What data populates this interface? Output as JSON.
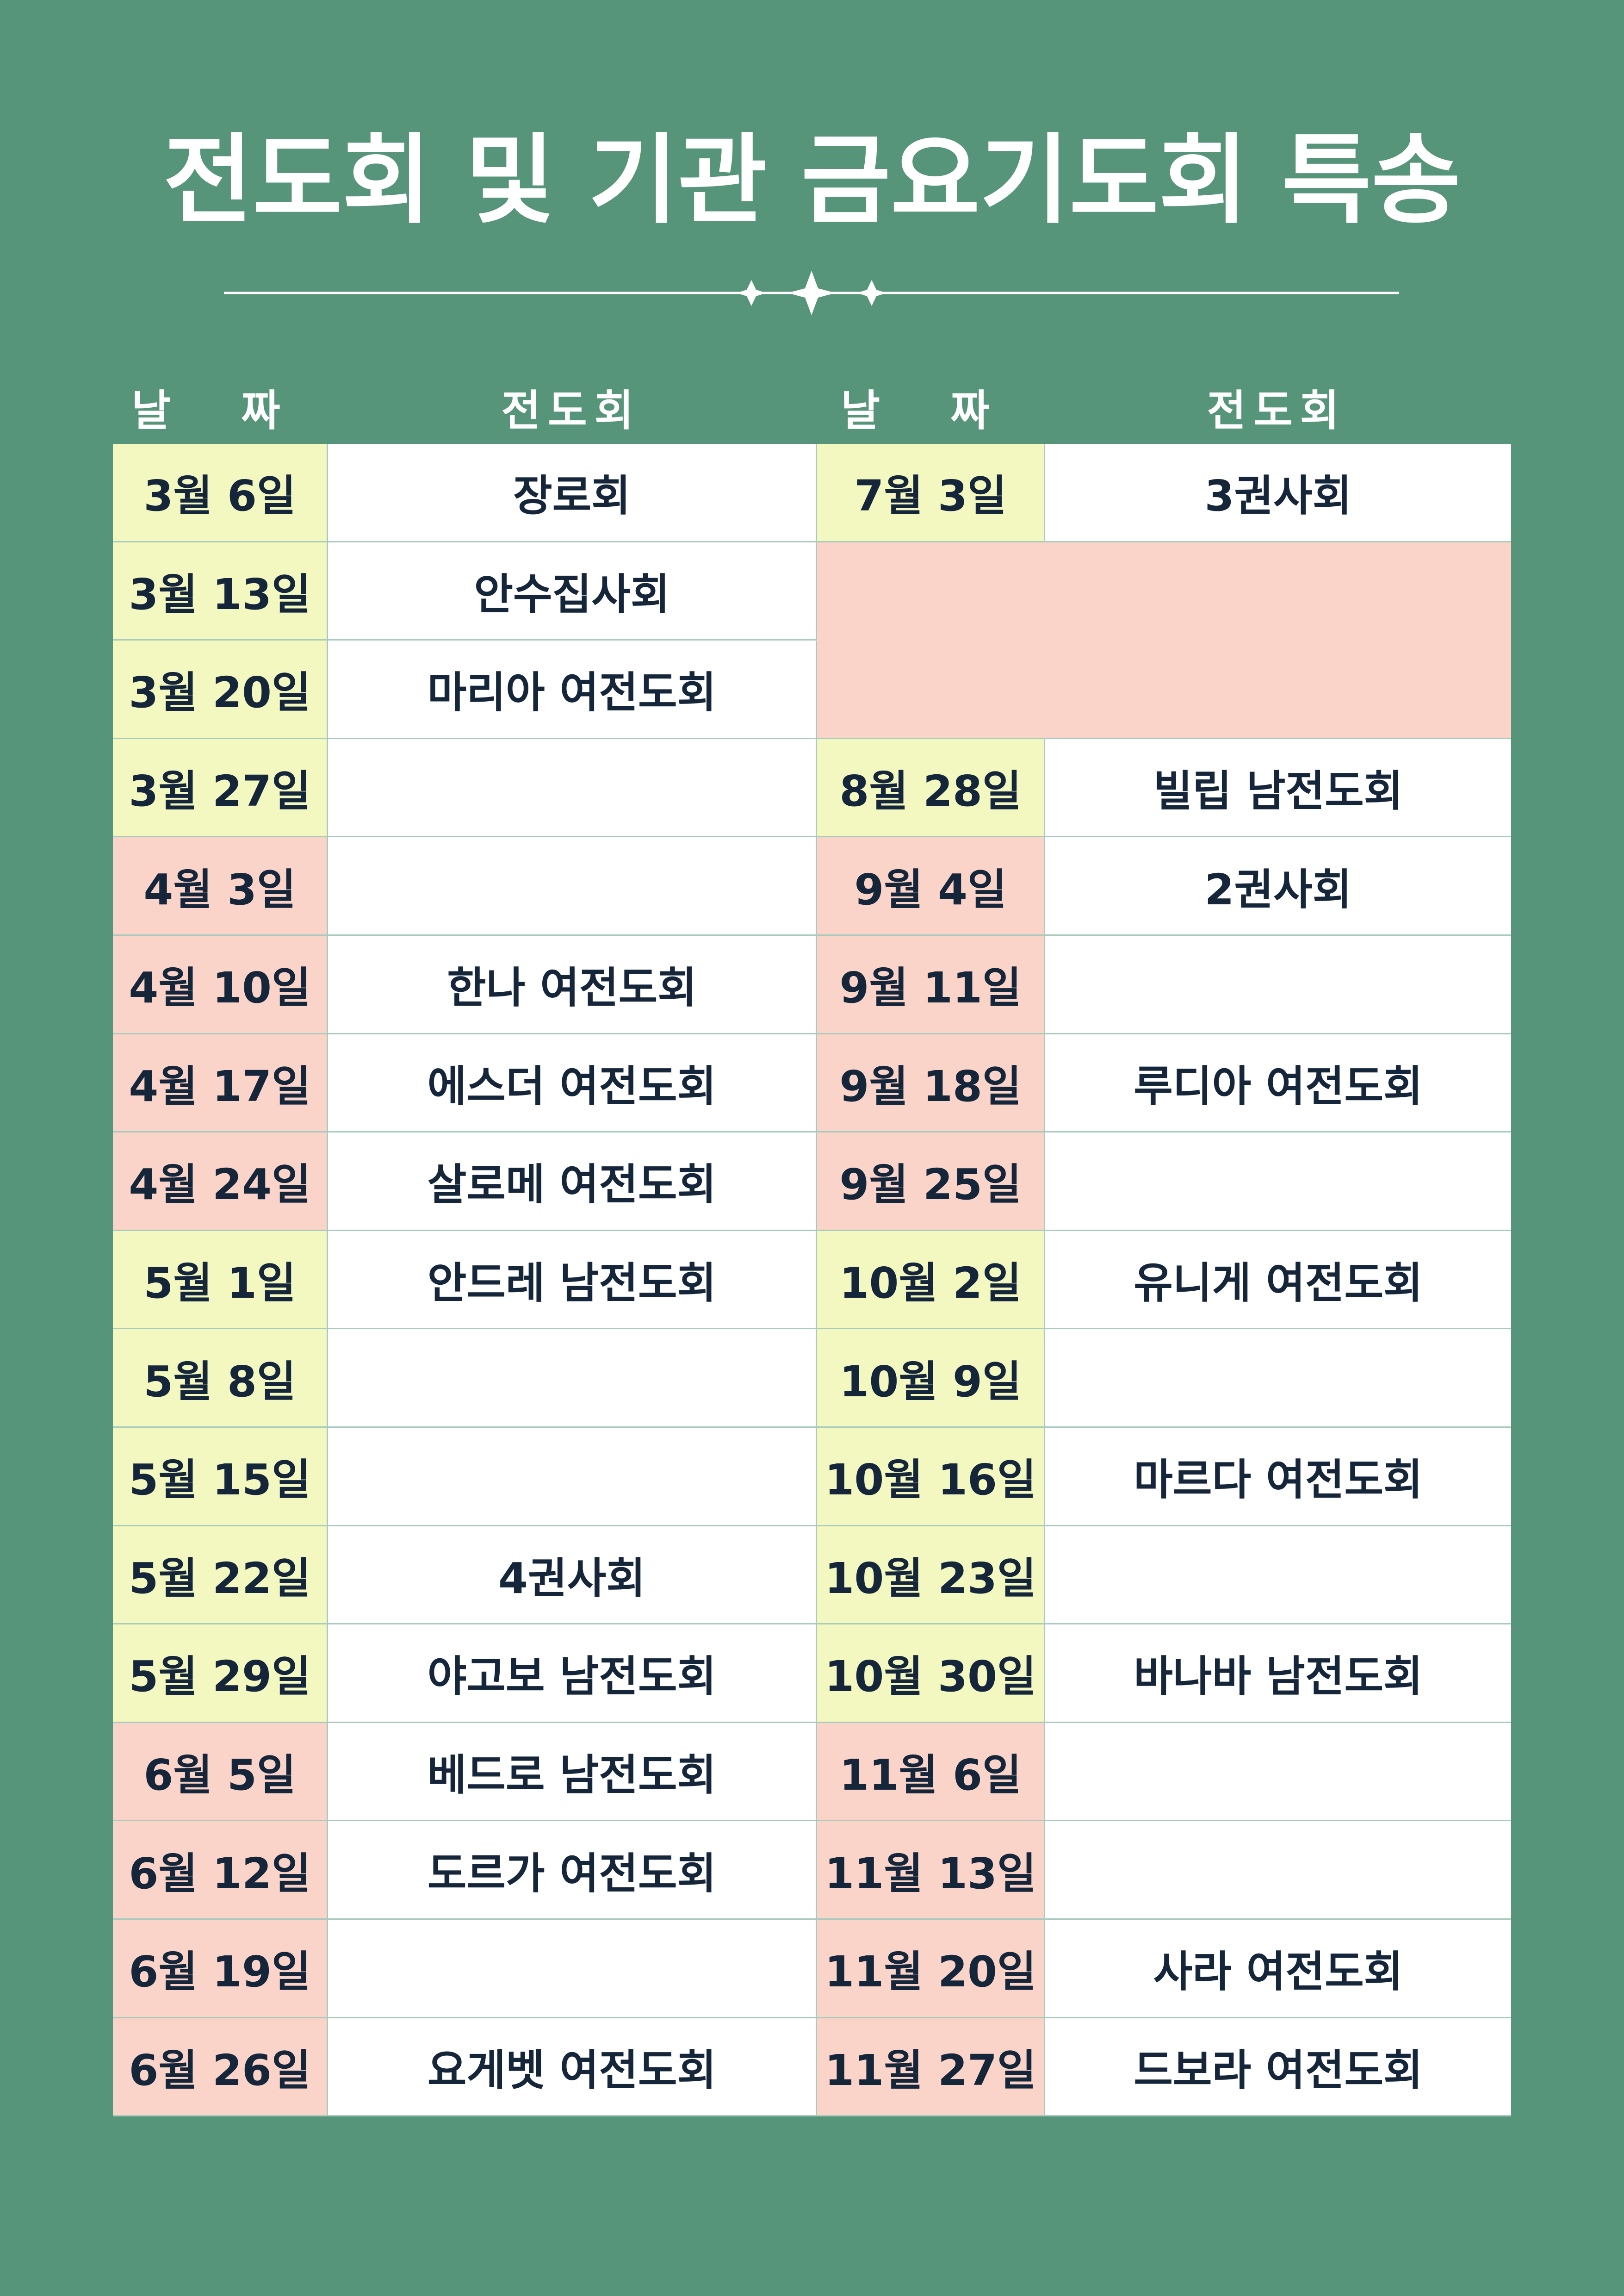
{
  "title": "전도회 및 기관 금요기도회 특송",
  "tables": [
    {
      "headers": [
        "날 짜",
        "전도회"
      ],
      "rows": [
        {
          "date": "3월 6일",
          "group": "장로회",
          "fill": "#f2f8c0"
        },
        {
          "date": "3월 13일",
          "group": "안수집사회",
          "fill": "#f2f8c0"
        },
        {
          "date": "3월 20일",
          "group": "마리아 여전도회",
          "fill": "#f2f8c0"
        },
        {
          "date": "3월 27일",
          "fill": "#f2f8c0"
        },
        {
          "date": "4월 3일",
          "fill": "#fad3c9"
        },
        {
          "date": "4월 10일",
          "group": "한나 여전도회",
          "fill": "#fad3c9"
        },
        {
          "date": "4월 17일",
          "group": "에스더 여전도회",
          "fill": "#fad3c9"
        },
        {
          "date": "4월 24일",
          "group": "살로메 여전도회",
          "fill": "#fad3c9"
        },
        {
          "date": "5월 1일",
          "group": "안드레 남전도회",
          "fill": "#f2f8c0"
        },
        {
          "date": "5월 8일",
          "fill": "#f2f8c0"
        },
        {
          "date": "5월 15일",
          "fill": "#f2f8c0"
        },
        {
          "date": "5월 22일",
          "group": "4권사회",
          "fill": "#f2f8c0"
        },
        {
          "date": "5월 29일",
          "group": "야고보 남전도회",
          "fill": "#f2f8c0"
        },
        {
          "date": "6월 5일",
          "group": "베드로 남전도회",
          "fill": "#fad3c9"
        },
        {
          "date": "6월 12일",
          "group": "도르가 여전도회",
          "fill": "#fad3c9"
        },
        {
          "date": "6월 19일",
          "fill": "#fad3c9"
        },
        {
          "date": "6월 26일",
          "group": "요게벳 여전도회",
          "fill": "#fad3c9"
        }
      ]
    },
    {
      "headers": [
        "날 짜",
        "전도회"
      ],
      "rows": [
        {
          "date": "7월 3일",
          "group": "3권사회",
          "fill": "#f2f8c0"
        },
        {
          "fill": "#fad3c9"
        },
        {
          "fill": "#fad3c9"
        },
        {
          "date": "8월 28일",
          "group": "빌립 남전도회",
          "fill": "#f2f8c0"
        },
        {
          "date": "9월 4일",
          "group": "2권사회",
          "fill": "#fad3c9"
        },
        {
          "date": "9월 11일",
          "fill": "#fad3c9"
        },
        {
          "date": "9월 18일",
          "group": "루디아 여전도회",
          "fill": "#fad3c9"
        },
        {
          "date": "9월 25일",
          "fill": "#fad3c9"
        },
        {
          "date": "10월 2일",
          "group": "유니게 여전도회",
          "fill": "#f2f8c0"
        },
        {
          "date": "10월 9일",
          "fill": "#f2f8c0"
        },
        {
          "date": "10월 16일",
          "group": "마르다 여전도회",
          "fill": "#f2f8c0"
        },
        {
          "date": "10월 23일",
          "fill": "#f2f8c0"
        },
        {
          "date": "10월 30일",
          "group": "바나바 남전도회",
          "fill": "#f2f8c0"
        },
        {
          "date": "11월 6일",
          "fill": "#fad3c9"
        },
        {
          "date": "11월 13일",
          "fill": "#fad3c9"
        },
        {
          "date": "11월 20일",
          "group": "사라 여전도회",
          "fill": "#fad3c9"
        },
        {
          "date": "11월 27일",
          "group": "드보라 여전도회",
          "fill": "#fad3c9"
        }
      ]
    }
  ]
}
